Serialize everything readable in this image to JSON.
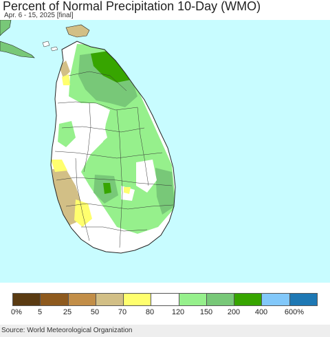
{
  "header": {
    "title": "Percent of Normal Precipitation 10-Day (WMO)",
    "subtitle": "Apr. 6 - 15, 2025 [final]"
  },
  "legend": {
    "labels": [
      "0%",
      "5",
      "25",
      "50",
      "70",
      "80",
      "120",
      "150",
      "200",
      "400",
      "600%"
    ],
    "colors": [
      "#5a3b12",
      "#8e5a1e",
      "#c28e48",
      "#d2bf86",
      "#ffff6e",
      "#ffffff",
      "#96f08c",
      "#78c878",
      "#37a500",
      "#82c8fa",
      "#1e78b4"
    ]
  },
  "colors": {
    "ocean": "#c8fcff",
    "mainland_neighbor": "#78c878",
    "boundary": "#222222"
  },
  "footer": {
    "source": "Source: World Meteorological Organization"
  }
}
